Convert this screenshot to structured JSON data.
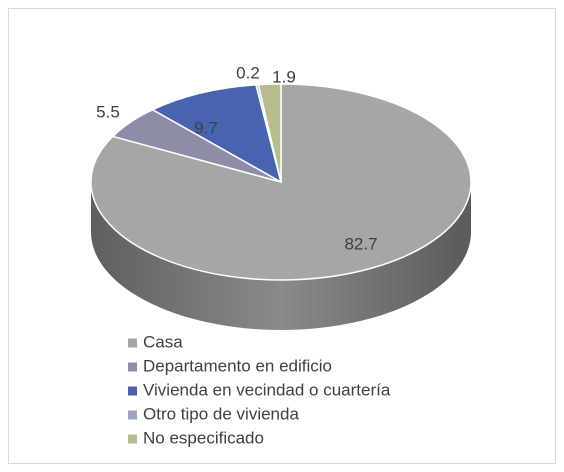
{
  "chart_data": {
    "type": "pie",
    "categories": [
      "Casa",
      "Departamento en edificio",
      "Vivienda en vecindad o cuartería",
      "Otro tipo de vivienda",
      "No especificado"
    ],
    "values": [
      82.7,
      5.5,
      9.7,
      0.2,
      1.9
    ],
    "colors": [
      "#a6a6a6",
      "#8b8ea6",
      "#4a63b1",
      "#9fa3c4",
      "#b8bb8e"
    ],
    "three_d": true
  }
}
